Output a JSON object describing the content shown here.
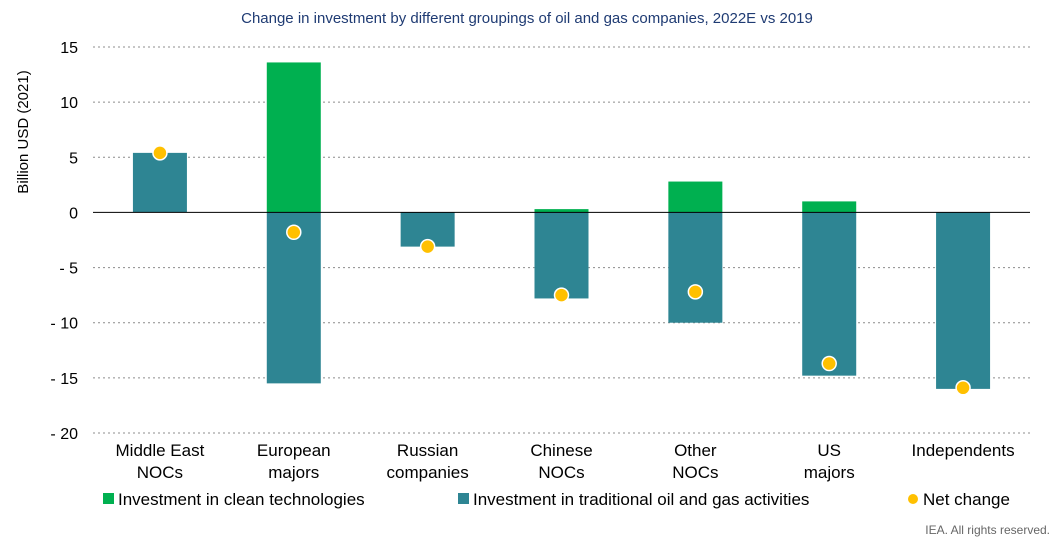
{
  "chart_data": {
    "type": "bar",
    "title": "Change in investment by different groupings of oil and gas companies, 2022E vs 2019",
    "ylabel": "Billion USD (2021)",
    "ylim": [
      -20,
      15
    ],
    "yticks": [
      15,
      10,
      5,
      0,
      -5,
      -10,
      -15,
      -20
    ],
    "ytick_labels": [
      "15",
      "10",
      "5",
      "0",
      "- 5",
      "- 10",
      "- 15",
      "- 20"
    ],
    "grid": true,
    "stacked": true,
    "categories": [
      [
        "Middle East",
        "NOCs"
      ],
      [
        "European",
        "majors"
      ],
      [
        "Russian",
        "companies"
      ],
      [
        "Chinese",
        "NOCs"
      ],
      [
        "Other",
        "NOCs"
      ],
      [
        "US",
        "majors"
      ],
      [
        "Independents"
      ]
    ],
    "series": [
      {
        "name": "Investment in clean technologies",
        "kind": "bar",
        "color": "#00b050",
        "values": [
          0,
          13.6,
          0,
          0.3,
          2.8,
          1.0,
          0
        ]
      },
      {
        "name": "Investment in traditional oil and gas activities",
        "kind": "bar",
        "color": "#2e8593",
        "values": [
          5.4,
          -15.5,
          -3.1,
          -7.8,
          -10.0,
          -14.8,
          -16.0
        ]
      },
      {
        "name": "Net change",
        "kind": "point",
        "color": "#ffc000",
        "values": [
          5.4,
          -1.8,
          -3.1,
          -7.5,
          -7.2,
          -13.7,
          -15.9
        ]
      }
    ],
    "legend_position": "bottom",
    "source": "IEA. All rights reserved."
  }
}
